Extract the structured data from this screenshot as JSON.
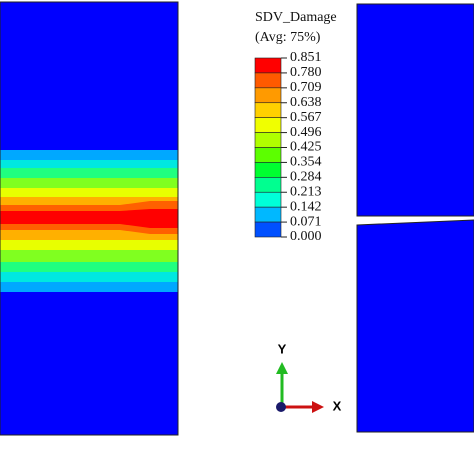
{
  "legend": {
    "title": "SDV_Damage",
    "subtitle": "(Avg: 75%)",
    "levels": [
      "0.851",
      "0.780",
      "0.709",
      "0.638",
      "0.567",
      "0.496",
      "0.425",
      "0.354",
      "0.284",
      "0.213",
      "0.142",
      "0.071",
      "0.000"
    ],
    "colors": [
      "#ff0000",
      "#ff5a00",
      "#ff9a00",
      "#ffd000",
      "#f0ff00",
      "#b0ff00",
      "#5cff00",
      "#00ff30",
      "#00ff90",
      "#00ffd8",
      "#00b8ff",
      "#0050ff"
    ]
  },
  "triad": {
    "y_label": "Y",
    "x_label": "X"
  }
}
